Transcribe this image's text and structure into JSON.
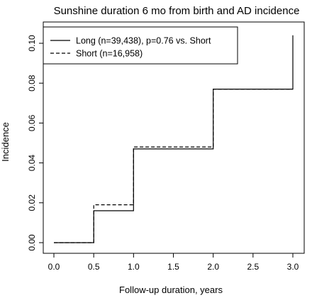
{
  "chart_data": {
    "type": "line",
    "title": "Sunshine duration 6 mo from birth and AD incidence",
    "xlabel": "Follow-up duration, years",
    "ylabel": "Incidence",
    "xlim": [
      0,
      3
    ],
    "ylim": [
      0,
      0.1
    ],
    "x_ticks": [
      "0.0",
      "0.5",
      "1.0",
      "1.5",
      "2.0",
      "2.5",
      "3.0"
    ],
    "y_ticks": [
      "0.00",
      "0.02",
      "0.04",
      "0.06",
      "0.08",
      "0.10"
    ],
    "grid": false,
    "legend_position": "top-left",
    "series": [
      {
        "name": "Long (n=39,438), p=0.76 vs. Short",
        "line_style": "solid",
        "x": [
          0,
          0.5,
          0.5,
          1.0,
          1.0,
          2.0,
          2.0,
          3.0,
          3.0
        ],
        "y": [
          0,
          0,
          0.016,
          0.016,
          0.047,
          0.047,
          0.077,
          0.077,
          0.104
        ]
      },
      {
        "name": "Short (n=16,958)",
        "line_style": "dashed",
        "x": [
          0,
          0.5,
          0.5,
          1.0,
          1.0,
          2.0,
          2.0,
          3.0
        ],
        "y": [
          0,
          0,
          0.019,
          0.019,
          0.048,
          0.048,
          0.077,
          0.077
        ]
      }
    ]
  }
}
